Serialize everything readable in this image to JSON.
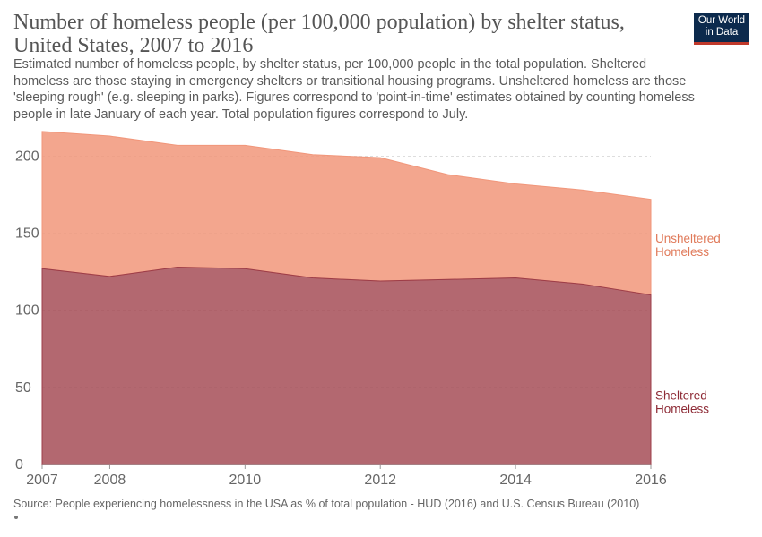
{
  "header": {
    "title": "Number of homeless people (per 100,000 population) by shelter status, United States, 2007 to 2016",
    "subtitle": "Estimated number of homeless people, by shelter status, per 100,000 people in the total population. Sheltered homeless are those staying in emergency shelters or transitional housing programs. Unsheltered homeless are those 'sleeping rough' (e.g. sleeping in parks). Figures correspond to 'point-in-time' estimates obtained by counting homeless people in late January of each year. Total population figures correspond to July.",
    "logo_line1": "Our World",
    "logo_line2": "in Data"
  },
  "footer": {
    "source": "Source: People experiencing homelessness in the USA as % of total population - HUD (2016) and U.S. Census Bureau (2010)"
  },
  "chart_data": {
    "type": "area",
    "stacked": true,
    "x": [
      2007,
      2008,
      2009,
      2010,
      2011,
      2012,
      2013,
      2014,
      2015,
      2016
    ],
    "series": [
      {
        "name": "Sheltered Homeless",
        "values": [
          127,
          122,
          128,
          127,
          121,
          119,
          120,
          121,
          117,
          110
        ],
        "color": "#9d3d48"
      },
      {
        "name": "Unsheltered Homeless",
        "values": [
          89,
          91,
          79,
          80,
          80,
          80,
          68,
          61,
          61,
          62
        ],
        "color": "#f1967a"
      }
    ],
    "x_ticks": [
      2007,
      2008,
      2010,
      2012,
      2014,
      2016
    ],
    "y_ticks": [
      0,
      50,
      100,
      150,
      200
    ],
    "ylim": [
      0,
      220
    ],
    "grid": "horizontal dashed",
    "legend": "labels at right end of series"
  }
}
